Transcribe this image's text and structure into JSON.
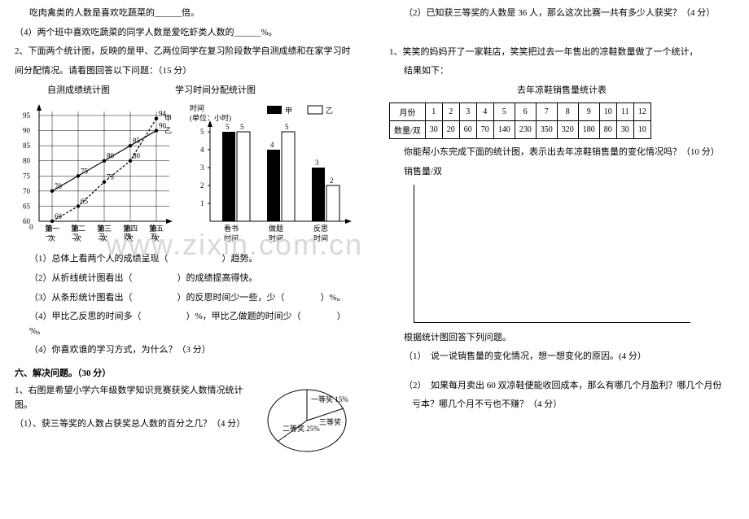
{
  "left": {
    "top1": "吃肉禽类的人数是喜欢吃蔬菜的______倍。",
    "top2": "（4）两个班中喜欢吃蔬菜的同学人数是爱吃虾类人数的______%。",
    "q2_intro1": "2、下面两个统计图，反映的是甲、乙两位同学在复习阶段数学自测成绩和在家学习时",
    "q2_intro2": "间分配情况。请看图回答以下问题：（15 分）",
    "heading_left": "自测成绩统计图",
    "heading_right": "学习时间分配统计图",
    "line_chart": {
      "y_ticks": [
        60,
        65,
        70,
        75,
        80,
        85,
        90,
        95
      ],
      "x_labels": [
        "第一次",
        "第二次",
        "第三次",
        "第四次",
        "第五次"
      ],
      "series": {
        "jia": {
          "label": "甲",
          "values": [
            60,
            65,
            73,
            80,
            94
          ],
          "dash": true
        },
        "yi": {
          "label": "乙",
          "values": [
            70,
            75,
            80,
            85,
            90
          ],
          "dash": false
        }
      },
      "value_labels_jia": [
        "60",
        "65",
        "73",
        "80",
        "94"
      ],
      "value_labels_yi": [
        "70",
        "75",
        "80",
        "85",
        "90"
      ]
    },
    "bar_chart": {
      "ylabel_l1": "时间",
      "ylabel_l2": "(单位：小时)",
      "y_ticks": [
        1,
        2,
        3,
        4,
        5
      ],
      "legend_jia": "甲",
      "legend_yi": "乙",
      "groups": [
        "看书时间",
        "做题时间",
        "反思时间"
      ],
      "jia": [
        5,
        4,
        3
      ],
      "yi": [
        5,
        5,
        2
      ],
      "labels_jia": [
        "5",
        "4",
        "3"
      ],
      "labels_yi": [
        "5",
        "5",
        "2"
      ]
    },
    "sub1": "（1）总体上看两个人的成绩呈现（　　　　　　）趋势。",
    "sub2": "（2）从折线统计图看出（　　　　　）的成绩提高得快。",
    "sub3": "（3）从条形统计图看出（　　　　　）的反思时间少一些，少（　　　　）%。",
    "sub4": "（4）甲比乙反思的时间多（　　　　　）%，甲比乙做题的时间少（　　　　）%。",
    "sub5": "（4）你喜欢谁的学习方式，为什么？（3 分）",
    "section6": "六、解决问题。（30 分）",
    "q1_1": "1、右图是希望小学六年级数学知识竞赛获奖人数情况统计图。",
    "q1_2": "（1）、获三等奖的人数占获奖总人数的百分之几？（4 分）",
    "pie": {
      "first": "一等奖 15%",
      "second": "二等奖 25%",
      "third": "三等奖"
    }
  },
  "right": {
    "q1_3": "（2）已知获三等奖的人数是 36 人，那么这次比赛一共有多少人获奖？（4 分）",
    "q2_1": "1、笑笑的妈妈开了一家鞋店，笑笑把过去一年售出的凉鞋数量做了一个统计，",
    "q2_2": "结果如下：",
    "table_title": "去年凉鞋销售量统计表",
    "table": {
      "head": [
        "月份",
        "1",
        "2",
        "3",
        "4",
        "5",
        "6",
        "7",
        "8",
        "9",
        "10",
        "11",
        "12"
      ],
      "row_label": "数量/双",
      "row": [
        "30",
        "20",
        "60",
        "70",
        "140",
        "230",
        "350",
        "320",
        "180",
        "80",
        "30",
        "10"
      ]
    },
    "q2_3": "你能帮小东完成下面的统计图，表示出去年凉鞋销售量的变化情况吗？（10 分）",
    "q2_4": "销售量/双",
    "after_chart": "根据统计图回答下列问题。",
    "sub_a": "（1）　说一说销售量的变化情况，想一想变化的原因。(4 分）",
    "sub_b1": "（2）　如果每月卖出 60 双凉鞋便能收回成本，那么有哪几个月盈利？哪几个月份",
    "sub_b2": "亏本？哪几个月不亏也不赚？（4 分）"
  }
}
